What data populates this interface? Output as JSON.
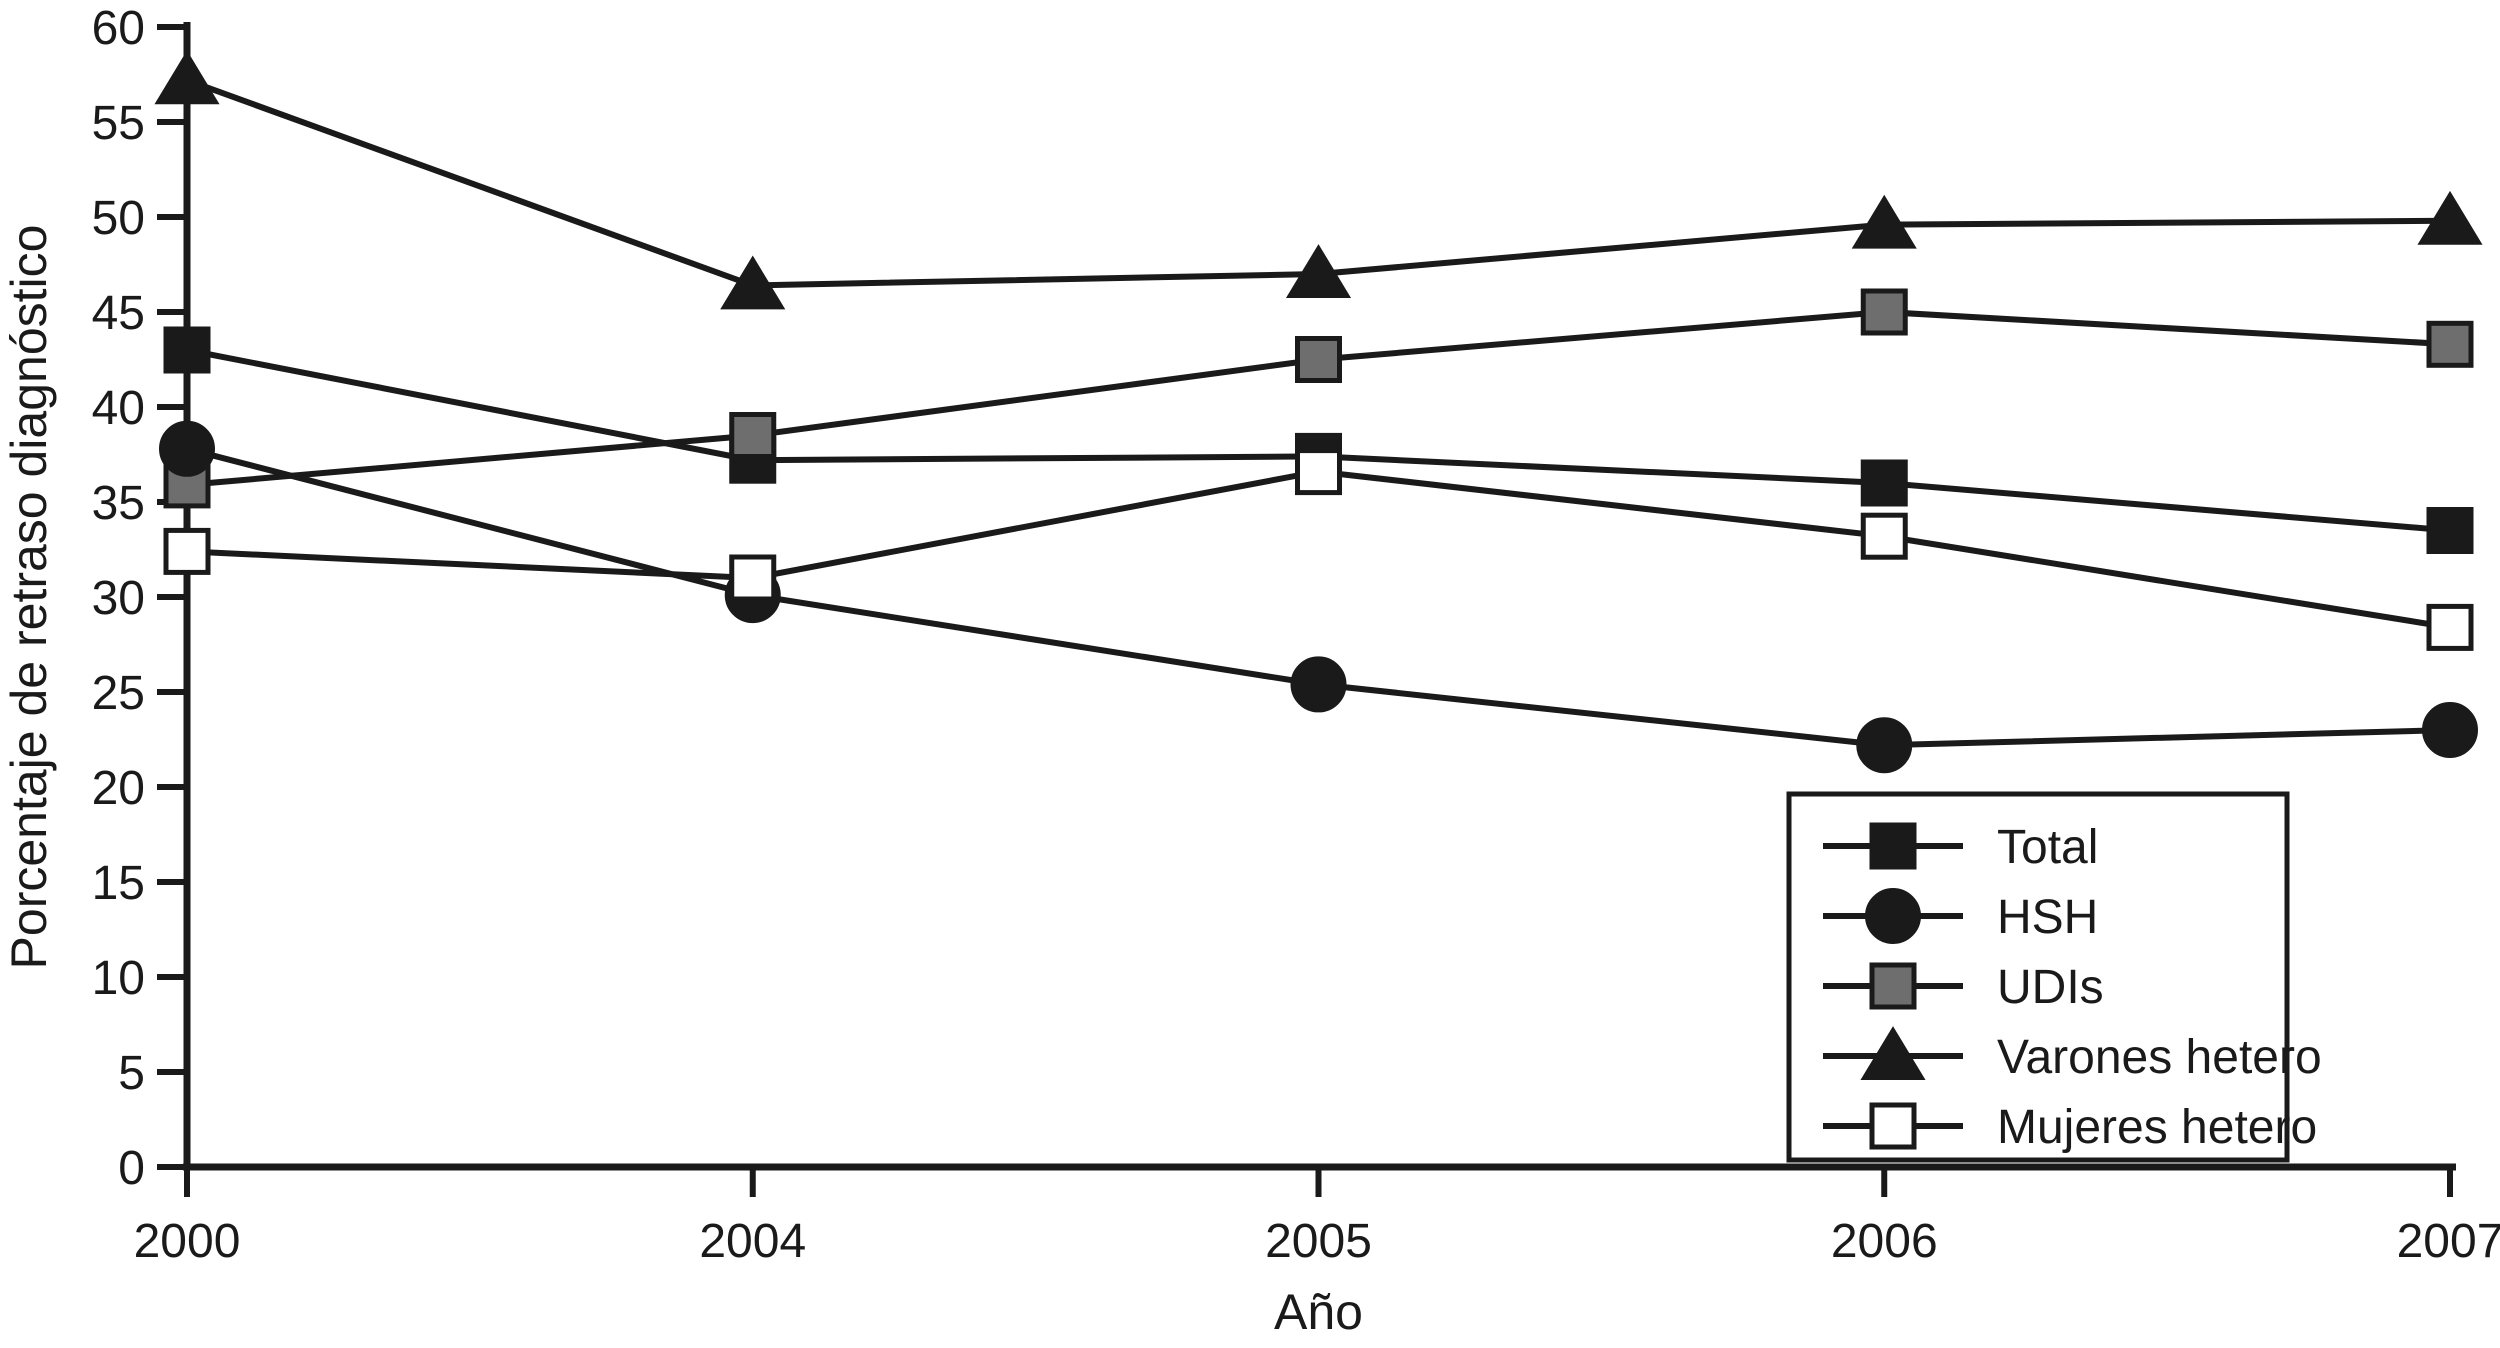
{
  "figure": {
    "background": "#ffffff",
    "text_color": "#1a1a1a",
    "line_color": "#1a1a1a",
    "gray_fill": "#6e6e6e",
    "white_fill": "#ffffff"
  },
  "chart_data": {
    "type": "line",
    "title": "",
    "xlabel": "Año",
    "ylabel": "Porcentaje de retraso diagnóstico",
    "categories": [
      "2000",
      "2004",
      "2005",
      "2006",
      "2007"
    ],
    "ylim": [
      0,
      60
    ],
    "ytick_step": 5,
    "yticks": [
      0,
      5,
      10,
      15,
      20,
      25,
      30,
      35,
      40,
      45,
      50,
      55,
      60
    ],
    "grid": false,
    "legend_position": "lower right",
    "series": [
      {
        "name": "Total",
        "marker": "square",
        "fill": "#1a1a1a",
        "values": [
          43.0,
          37.2,
          37.4,
          36.0,
          33.5
        ]
      },
      {
        "name": "HSH",
        "marker": "circle",
        "fill": "#1a1a1a",
        "values": [
          37.8,
          30.1,
          25.4,
          22.2,
          23.0
        ]
      },
      {
        "name": "UDIs",
        "marker": "square",
        "fill": "#6e6e6e",
        "values": [
          35.9,
          38.5,
          42.5,
          45.0,
          43.3
        ]
      },
      {
        "name": "Varones hetero",
        "marker": "triangle",
        "fill": "#1a1a1a",
        "values": [
          57.2,
          46.4,
          47.0,
          49.6,
          49.8
        ]
      },
      {
        "name": "Mujeres hetero",
        "marker": "square",
        "fill": "#ffffff",
        "values": [
          32.4,
          31.0,
          36.6,
          33.2,
          28.4
        ]
      }
    ],
    "draw_order": [
      0,
      2,
      1,
      3,
      4
    ],
    "legend_order": [
      0,
      1,
      2,
      3,
      4
    ]
  }
}
